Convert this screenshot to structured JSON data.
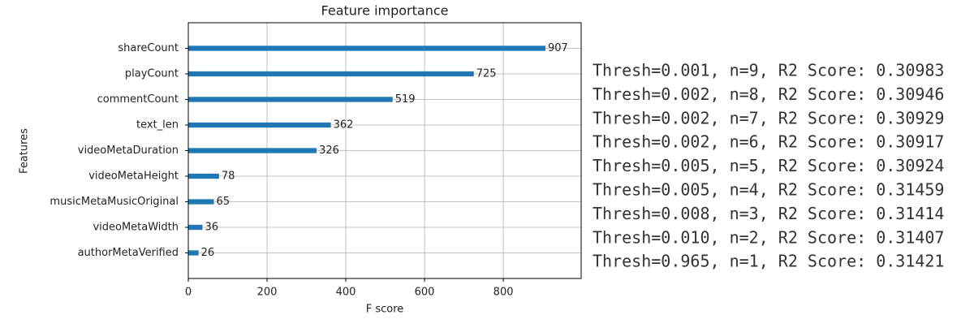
{
  "chart_data": {
    "type": "barh",
    "title": "Feature importance",
    "x_label": "F score",
    "y_label": "Features",
    "categories": [
      "shareCount",
      "playCount",
      "commentCount",
      "text_len",
      "videoMetaDuration",
      "videoMetaHeight",
      "musicMetaMusicOriginal",
      "videoMetaWidth",
      "authorMetaVerified"
    ],
    "values": [
      907,
      725,
      519,
      362,
      326,
      78,
      65,
      36,
      26
    ],
    "color": "#1f77b4",
    "xlim": [
      0,
      997.7
    ],
    "xticks": [
      0,
      200,
      400,
      600,
      800
    ],
    "grid": true
  },
  "console": {
    "lines": [
      "Thresh=0.001, n=9, R2 Score: 0.30983",
      "Thresh=0.002, n=8, R2 Score: 0.30946",
      "Thresh=0.002, n=7, R2 Score: 0.30929",
      "Thresh=0.002, n=6, R2 Score: 0.30917",
      "Thresh=0.005, n=5, R2 Score: 0.30924",
      "Thresh=0.005, n=4, R2 Score: 0.31459",
      "Thresh=0.008, n=3, R2 Score: 0.31414",
      "Thresh=0.010, n=2, R2 Score: 0.31407",
      "Thresh=0.965, n=1, R2 Score: 0.31421"
    ]
  }
}
